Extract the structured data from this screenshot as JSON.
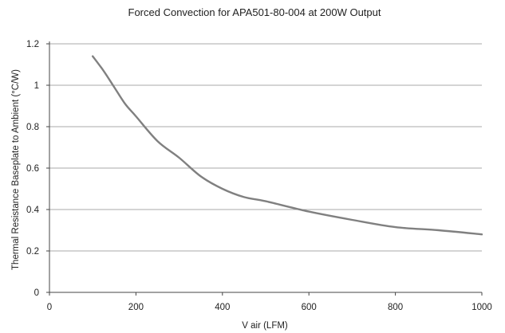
{
  "chart_data": {
    "type": "line",
    "title": "Forced Convection for APA501-80-004 at 200W Output",
    "xlabel": "V air (LFM)",
    "ylabel": "Thermal Resistance Baseplate to Ambient (°C/W)",
    "xlim": [
      0,
      1000
    ],
    "ylim": [
      0,
      1.2
    ],
    "x_ticks": [
      0,
      200,
      400,
      600,
      800,
      1000
    ],
    "x_tick_labels": [
      "0",
      "200",
      "400",
      "600",
      "800",
      "1000"
    ],
    "y_ticks": [
      0,
      0.2,
      0.4,
      0.6,
      0.8,
      1,
      1.2
    ],
    "y_tick_labels": [
      "0",
      "0.2",
      "0.4",
      "0.6",
      "0.8",
      "1",
      "1.2"
    ],
    "grid": "horizontal",
    "legend": "none",
    "series": [
      {
        "color": "#808080",
        "x": [
          100,
          125,
          150,
          175,
          200,
          250,
          300,
          350,
          400,
          450,
          500,
          600,
          700,
          800,
          900,
          1000
        ],
        "y": [
          1.14,
          1.07,
          0.99,
          0.91,
          0.85,
          0.73,
          0.65,
          0.56,
          0.5,
          0.46,
          0.44,
          0.39,
          0.35,
          0.315,
          0.3,
          0.28
        ]
      }
    ]
  }
}
